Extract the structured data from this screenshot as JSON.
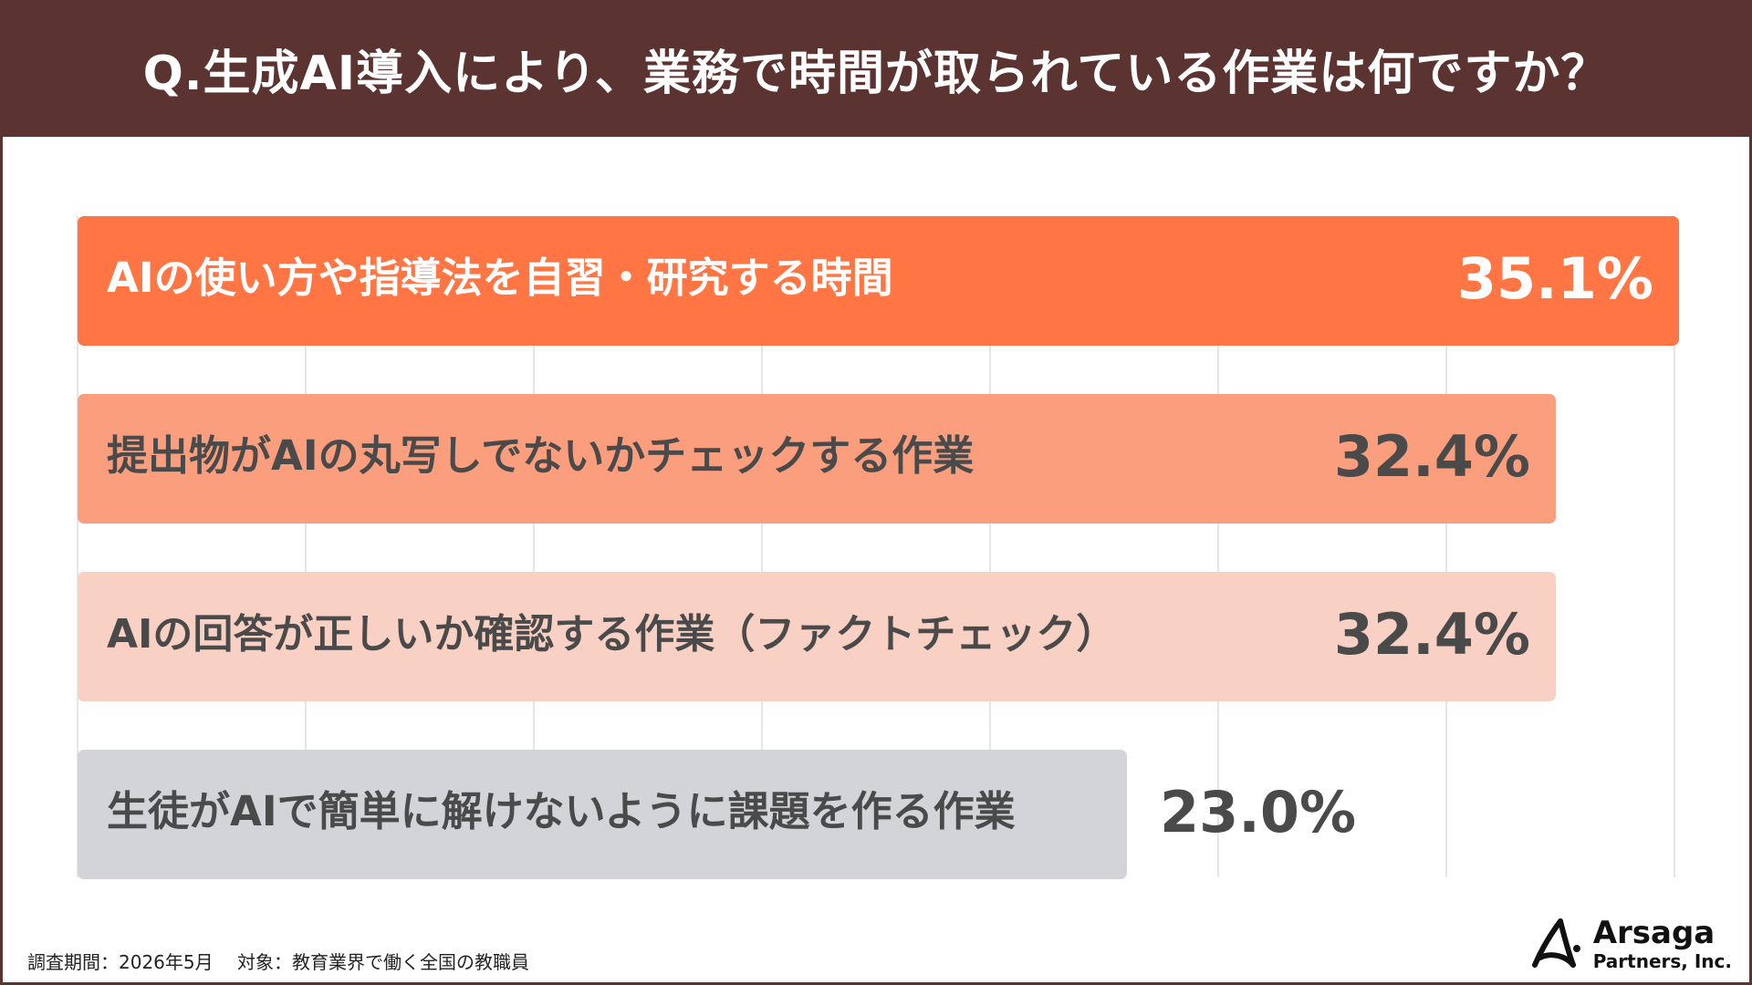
{
  "header": {
    "title": "Q.生成AI導入により、業務で時間が取られている作業は何ですか？"
  },
  "chart_data": {
    "type": "bar",
    "orientation": "horizontal",
    "categories": [
      "AIの使い方や指導法を自習・研究する時間",
      "提出物がAIの丸写しでないかチェックする作業",
      "AIの回答が正しいか確認する作業（ファクトチェック）",
      "生徒がAIで簡単に解けないように課題を作る作業"
    ],
    "values": [
      35.1,
      32.4,
      32.4,
      23.0
    ],
    "value_labels": [
      "35.1%",
      "32.4%",
      "32.4%",
      "23.0%"
    ],
    "colors": [
      "#ff7644",
      "#fa9e7e",
      "#f8d0c4",
      "#d2d4d8"
    ],
    "label_colors": [
      "#ffffff",
      "#4a4a4a",
      "#4a4a4a",
      "#4a4a4a"
    ],
    "xlim": [
      0,
      35
    ],
    "grid": true,
    "title": "",
    "xlabel": "",
    "ylabel": ""
  },
  "footer": {
    "note": "調査期間：2026年5月　 対象：教育業界で働く全国の教職員"
  },
  "logo": {
    "name": "Arsaga",
    "sub": "Partners, Inc."
  }
}
